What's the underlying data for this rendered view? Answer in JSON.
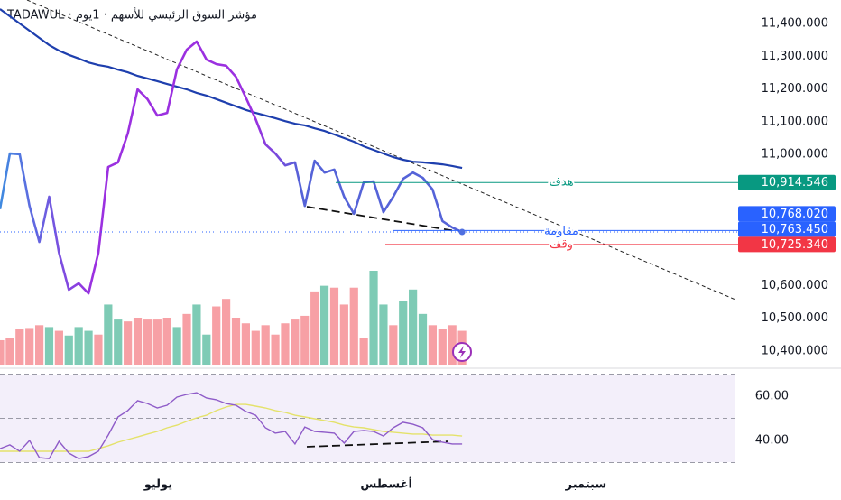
{
  "chart_data": {
    "type": "line",
    "title": "TADAWUL · مؤشر السوق الرئيسي للأسهم · 1يوم",
    "xlim": [
      0,
      74.8
    ],
    "xticks": [
      {
        "value": 16.1,
        "label": "يوليو"
      },
      {
        "value": 39.3,
        "label": "أغسطس"
      },
      {
        "value": 59.6,
        "label": "سبتمبر"
      }
    ],
    "ylim": [
      10355.9,
      11471.6
    ],
    "yticks": [
      {
        "value": 10400,
        "label": "10,400.000"
      },
      {
        "value": 10500,
        "label": "10,500.000"
      },
      {
        "value": 10600,
        "label": "10,600.000"
      },
      {
        "value": 11000,
        "label": "11,000.000"
      },
      {
        "value": 11100,
        "label": "11,100.000"
      },
      {
        "value": 11200,
        "label": "11,200.000"
      },
      {
        "value": 11300,
        "label": "11,300.000"
      },
      {
        "value": 11400,
        "label": "11,400.000"
      }
    ],
    "series": [
      {
        "colors": [
          "#3f8ae0",
          "#9b30e0",
          "#5563d8"
        ],
        "values": [
          10833,
          11003,
          11001,
          10843,
          10733,
          10871,
          10700,
          10587,
          10607,
          10576,
          10700,
          10962,
          10976,
          11064,
          11199,
          11169,
          11119,
          11127,
          11260,
          11320,
          11345,
          11290,
          11276,
          11271,
          11237,
          11174,
          11108,
          11031,
          11003,
          10967,
          10976,
          10843,
          10981,
          10945,
          10954,
          10871,
          10819,
          10915,
          10918,
          10824,
          10871,
          10926,
          10945,
          10929,
          10893,
          10797,
          10777,
          10763.45
        ]
      },
      {
        "color": "#1e3fae",
        "values": [
          11444,
          11422,
          11400,
          11378,
          11356,
          11334,
          11317,
          11304,
          11293,
          11281,
          11273,
          11268,
          11259,
          11251,
          11240,
          11232,
          11224,
          11215,
          11207,
          11199,
          11188,
          11180,
          11169,
          11158,
          11147,
          11136,
          11127,
          11119,
          11111,
          11102,
          11094,
          11089,
          11080,
          11072,
          11061,
          11050,
          11039,
          11025,
          11014,
          11003,
          10992,
          10984,
          10978,
          10976,
          10973,
          10970,
          10965,
          10959
        ]
      }
    ],
    "volume": {
      "values": [
        26,
        28,
        38,
        39,
        42,
        40,
        36,
        31,
        40,
        36,
        32,
        64,
        48,
        46,
        50,
        48,
        48,
        50,
        40,
        54,
        64,
        32,
        62,
        70,
        50,
        44,
        36,
        42,
        32,
        44,
        48,
        52,
        78,
        84,
        82,
        64,
        82,
        28,
        100,
        64,
        42,
        68,
        80,
        54,
        42,
        38,
        42,
        36
      ],
      "colors": [
        "#f7a0a5",
        "#f7a0a5",
        "#f7a0a5",
        "#f7a0a5",
        "#f7a0a5",
        "#7ecbb5",
        "#f7a0a5",
        "#7ecbb5",
        "#7ecbb5",
        "#7ecbb5",
        "#f7a0a5",
        "#7ecbb5",
        "#7ecbb5",
        "#f7a0a5",
        "#f7a0a5",
        "#f7a0a5",
        "#f7a0a5",
        "#f7a0a5",
        "#7ecbb5",
        "#f7a0a5",
        "#7ecbb5",
        "#7ecbb5",
        "#f7a0a5",
        "#f7a0a5",
        "#f7a0a5",
        "#f7a0a5",
        "#f7a0a5",
        "#f7a0a5",
        "#f7a0a5",
        "#f7a0a5",
        "#f7a0a5",
        "#f7a0a5",
        "#f7a0a5",
        "#7ecbb5",
        "#f7a0a5",
        "#f7a0a5",
        "#f7a0a5",
        "#f7a0a5",
        "#7ecbb5",
        "#7ecbb5",
        "#f7a0a5",
        "#7ecbb5",
        "#7ecbb5",
        "#7ecbb5",
        "#f7a0a5",
        "#f7a0a5",
        "#f7a0a5",
        "#f7a0a5"
      ]
    },
    "levels": [
      {
        "value": 10914.546,
        "label": "10,914.546",
        "name": "هدف",
        "color": "#089981"
      },
      {
        "value": 10768.02,
        "label": "10,768.020",
        "name": "مقاومة",
        "color": "#2962ff"
      },
      {
        "value": 10763.45,
        "label": "10,763.450",
        "color": "#2962ff",
        "style": "dotted"
      },
      {
        "value": 10725.34,
        "label": "10,725.340",
        "name": "وقف",
        "color": "#f23645"
      }
    ],
    "rsi": {
      "ylim": [
        30,
        70
      ],
      "yticks": [
        {
          "value": 40,
          "label": "40.00"
        },
        {
          "value": 60,
          "label": "60.00"
        }
      ],
      "series": [
        {
          "color": "#8e5bc8",
          "values": [
            36.3,
            38.0,
            35.1,
            40.0,
            32.2,
            31.8,
            39.6,
            34.3,
            31.8,
            32.7,
            35.1,
            42.4,
            50.6,
            53.5,
            58.0,
            56.7,
            54.7,
            55.9,
            59.6,
            60.8,
            61.6,
            59.2,
            58.4,
            56.7,
            55.9,
            53.1,
            51.4,
            45.7,
            43.3,
            44.1,
            38.4,
            46.1,
            44.1,
            43.7,
            43.3,
            38.8,
            44.1,
            44.5,
            44.1,
            42.0,
            45.7,
            48.2,
            47.3,
            45.7,
            40.4,
            39.2,
            38.4,
            38.4
          ]
        },
        {
          "color": "#e4e26a",
          "values": [
            35.1,
            35.1,
            35.1,
            35.1,
            35.1,
            35.1,
            35.1,
            35.1,
            35.1,
            35.1,
            36.3,
            37.6,
            39.2,
            40.4,
            41.6,
            42.9,
            44.1,
            45.7,
            46.9,
            48.6,
            50.2,
            51.4,
            53.5,
            55.1,
            56.3,
            56.3,
            55.5,
            54.7,
            53.5,
            52.7,
            51.4,
            50.6,
            49.8,
            49.0,
            48.2,
            46.9,
            46.1,
            45.7,
            44.9,
            44.1,
            43.7,
            43.3,
            42.9,
            42.9,
            42.4,
            42.4,
            42.4,
            42.0
          ]
        }
      ]
    }
  }
}
